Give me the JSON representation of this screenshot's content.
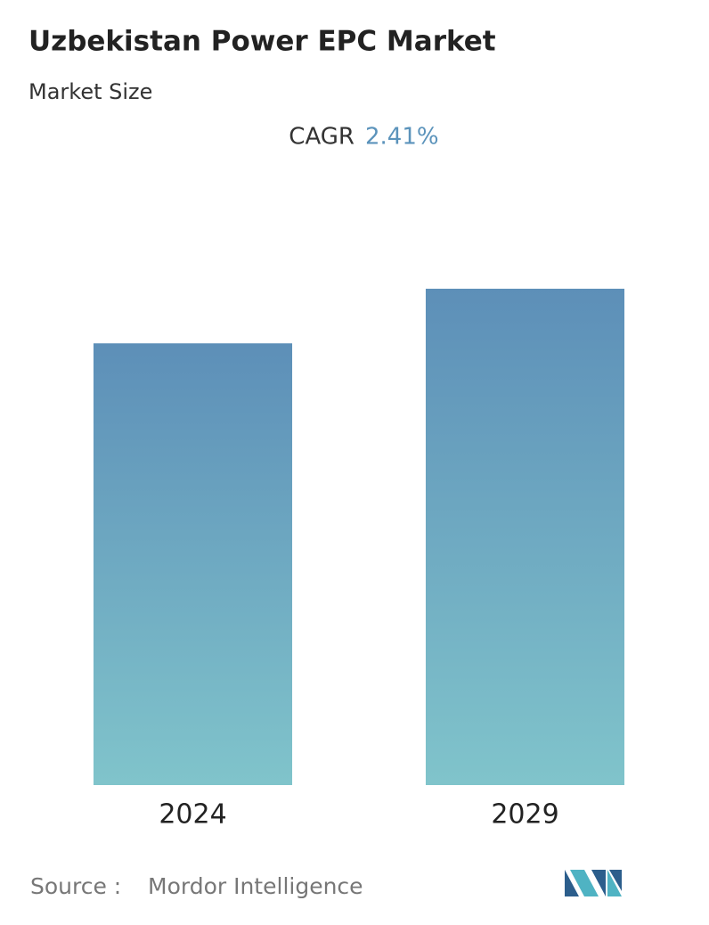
{
  "chart_data": {
    "type": "bar",
    "title": "Uzbekistan Power EPC Market",
    "subtitle": "Market Size",
    "cagr_label": "CAGR",
    "cagr_value": "2.41%",
    "categories": [
      "2024",
      "2029"
    ],
    "values": [
      89,
      100
    ],
    "ylim": [
      0,
      100
    ],
    "gradient": [
      "#5d8fb8",
      "#80c4cb"
    ],
    "source_label": "Source :",
    "source": "Mordor Intelligence"
  }
}
